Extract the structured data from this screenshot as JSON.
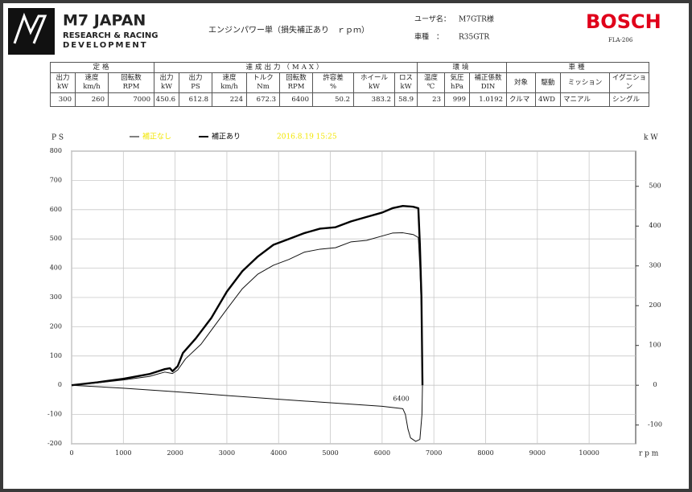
{
  "header": {
    "logo": {
      "brand": "M7 JAPAN",
      "line1": "RESEARCH & RACING",
      "line2": "DEVELOPMENT"
    },
    "title": "エンジンパワー単（損失補正あり　ｒｐｍ）",
    "user_label": "ユーザ名：",
    "user": "M7GTR様",
    "car_label": "車種　：",
    "car": "R35GTR",
    "maker": "BOSCH",
    "model": "FLA-206"
  },
  "table": {
    "groups": [
      {
        "label": "定格",
        "columns": [
          {
            "label": "出力",
            "unit": "kW",
            "value": 300
          },
          {
            "label": "速度",
            "unit": "km/h",
            "value": 260
          },
          {
            "label": "回転数",
            "unit": "RPM",
            "value": 7000
          }
        ]
      },
      {
        "label": "達成出力（MAX）",
        "columns": [
          {
            "label": "出力",
            "unit": "kW",
            "value": 450.6
          },
          {
            "label": "出力",
            "unit": "PS",
            "value": 612.8
          },
          {
            "label": "速度",
            "unit": "km/h",
            "value": 224
          },
          {
            "label": "トルク",
            "unit": "Nm",
            "value": 672.3
          },
          {
            "label": "回転数",
            "unit": "RPM",
            "value": 6400
          },
          {
            "label": "許容差",
            "unit": "%",
            "value": 50.2
          },
          {
            "label": "ホイール",
            "unit": "kW",
            "value": 383.2
          },
          {
            "label": "ロス",
            "unit": "kW",
            "value": 58.9
          }
        ]
      },
      {
        "label": "環境",
        "columns": [
          {
            "label": "温度",
            "unit": "℃",
            "value": 23
          },
          {
            "label": "気圧",
            "unit": "hPa",
            "value": 999
          },
          {
            "label": "補正係数",
            "unit": "DIN",
            "value": 1.0192
          }
        ]
      },
      {
        "label": "車種",
        "columns": [
          {
            "label": "対象",
            "value": "クルマ"
          },
          {
            "label": "駆動",
            "value": "4WD"
          },
          {
            "label": "ミッション",
            "value": "マニアル"
          },
          {
            "label": "イグニション",
            "value": "シングル"
          }
        ]
      }
    ]
  },
  "chart_data": {
    "type": "line",
    "y_label": "P S",
    "y2_label": "k W",
    "x_label": "r p m",
    "legend_items": [
      {
        "name": "補正なし",
        "color": "#f2e600"
      },
      {
        "name": "補正あり",
        "color": "#000000"
      }
    ],
    "date": "2016.8.19 15:25",
    "date_color": "#f2e600",
    "annotation": {
      "text": "6400",
      "x": 6400,
      "y": -80
    },
    "xlim": [
      0,
      10900
    ],
    "xticks": [
      0,
      1000,
      2000,
      3000,
      4000,
      5000,
      6000,
      7000,
      8000,
      9000,
      10000
    ],
    "ylim": [
      -200,
      800
    ],
    "yticks": [
      -200,
      -100,
      0,
      100,
      200,
      300,
      400,
      500,
      600,
      700,
      800
    ],
    "y2lim": [
      -147.1,
      588.4
    ],
    "y2ticks": [
      -100,
      0,
      100,
      200,
      300,
      400,
      500
    ],
    "grid": true,
    "series": [
      {
        "name": "補正あり",
        "color": "#000000",
        "width": 2.4,
        "x": [
          0,
          500,
          1000,
          1500,
          1800,
          1900,
          1950,
          2050,
          2150,
          2400,
          2700,
          3000,
          3300,
          3600,
          3900,
          4200,
          4500,
          4800,
          5100,
          5400,
          5700,
          6000,
          6200,
          6400,
          6600,
          6700,
          6730,
          6760,
          6780
        ],
        "values": [
          0,
          10,
          22,
          38,
          55,
          58,
          48,
          65,
          110,
          160,
          230,
          320,
          390,
          440,
          480,
          500,
          520,
          535,
          540,
          560,
          575,
          590,
          605,
          612.8,
          610,
          605,
          480,
          300,
          0
        ]
      },
      {
        "color": "#111111",
        "width": 1,
        "x": [
          0,
          500,
          1000,
          1500,
          1800,
          1950,
          2050,
          2200,
          2500,
          3000,
          3300,
          3600,
          3900,
          4200,
          4500,
          4800,
          5100,
          5400,
          5700,
          6000,
          6200,
          6400,
          6600,
          6700,
          6730,
          6760,
          6780
        ],
        "values": [
          0,
          8,
          18,
          30,
          45,
          40,
          52,
          90,
          140,
          260,
          330,
          380,
          410,
          430,
          455,
          465,
          470,
          490,
          495,
          510,
          520,
          521,
          515,
          505,
          400,
          250,
          0
        ]
      },
      {
        "color": "#111111",
        "width": 1,
        "x": [
          0,
          1000,
          2000,
          3000,
          4000,
          5000,
          6000,
          6400,
          6450,
          6500,
          6550,
          6650,
          6730,
          6770,
          6780
        ],
        "values": [
          0,
          -10,
          -22,
          -35,
          -48,
          -60,
          -72,
          -80,
          -100,
          -150,
          -180,
          -192,
          -185,
          -100,
          0
        ]
      }
    ]
  }
}
